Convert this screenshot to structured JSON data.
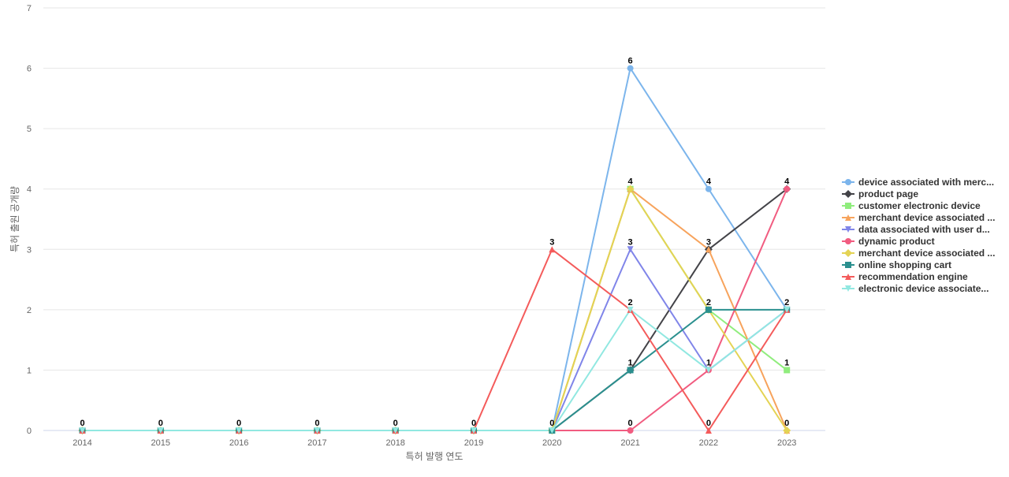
{
  "chart_data": {
    "type": "line",
    "title": "",
    "xlabel": "특허 발행 연도",
    "ylabel": "특허 출원 공개량",
    "x": [
      "2014",
      "2015",
      "2016",
      "2017",
      "2018",
      "2019",
      "2020",
      "2021",
      "2022",
      "2023"
    ],
    "ylim": [
      0,
      7
    ],
    "yticks": [
      0,
      1,
      2,
      3,
      4,
      5,
      6,
      7
    ],
    "grid": true,
    "legend_position": "right",
    "series": [
      {
        "name": "device associated with merc...",
        "color": "#7cb5ec",
        "marker": "circle",
        "values": [
          0,
          0,
          0,
          0,
          0,
          0,
          0,
          6,
          4,
          2
        ]
      },
      {
        "name": "product page",
        "color": "#434348",
        "marker": "diamond",
        "values": [
          0,
          0,
          0,
          0,
          0,
          0,
          0,
          1,
          3,
          4
        ]
      },
      {
        "name": "customer electronic device",
        "color": "#90ed7d",
        "marker": "square",
        "values": [
          0,
          0,
          0,
          0,
          0,
          0,
          0,
          4,
          2,
          1
        ]
      },
      {
        "name": "merchant device associated ...",
        "color": "#f7a35c",
        "marker": "triangle",
        "values": [
          0,
          0,
          0,
          0,
          0,
          0,
          0,
          4,
          3,
          0
        ]
      },
      {
        "name": "data associated with user d...",
        "color": "#8085e9",
        "marker": "triangle-down",
        "values": [
          0,
          0,
          0,
          0,
          0,
          0,
          0,
          3,
          1,
          2
        ]
      },
      {
        "name": "dynamic product",
        "color": "#f15c80",
        "marker": "circle",
        "values": [
          0,
          0,
          0,
          0,
          0,
          0,
          0,
          0,
          1,
          4
        ]
      },
      {
        "name": "merchant device associated ...",
        "color": "#e4d354",
        "marker": "diamond",
        "values": [
          0,
          0,
          0,
          0,
          0,
          0,
          0,
          4,
          2,
          0
        ]
      },
      {
        "name": "online shopping cart",
        "color": "#2b908f",
        "marker": "square",
        "values": [
          0,
          0,
          0,
          0,
          0,
          0,
          0,
          1,
          2,
          2
        ]
      },
      {
        "name": "recommendation engine",
        "color": "#f45b5b",
        "marker": "triangle",
        "values": [
          0,
          0,
          0,
          0,
          0,
          0,
          3,
          2,
          0,
          2
        ]
      },
      {
        "name": "electronic device associate...",
        "color": "#91e8e1",
        "marker": "triangle-down",
        "values": [
          0,
          0,
          0,
          0,
          0,
          0,
          0,
          2,
          1,
          2
        ]
      }
    ],
    "data_labels": [
      {
        "x": "2014",
        "text": "0",
        "y": 0
      },
      {
        "x": "2015",
        "text": "0",
        "y": 0
      },
      {
        "x": "2016",
        "text": "0",
        "y": 0
      },
      {
        "x": "2017",
        "text": "0",
        "y": 0
      },
      {
        "x": "2018",
        "text": "0",
        "y": 0
      },
      {
        "x": "2019",
        "text": "0",
        "y": 0
      },
      {
        "x": "2020",
        "text": "3",
        "y": 3
      },
      {
        "x": "2020",
        "text": "0",
        "y": 0
      },
      {
        "x": "2021",
        "text": "6",
        "y": 6
      },
      {
        "x": "2021",
        "text": "4",
        "y": 4
      },
      {
        "x": "2021",
        "text": "3",
        "y": 3
      },
      {
        "x": "2021",
        "text": "2",
        "y": 2
      },
      {
        "x": "2021",
        "text": "1",
        "y": 1
      },
      {
        "x": "2021",
        "text": "0",
        "y": 0
      },
      {
        "x": "2022",
        "text": "4",
        "y": 4
      },
      {
        "x": "2022",
        "text": "3",
        "y": 3
      },
      {
        "x": "2022",
        "text": "2",
        "y": 2
      },
      {
        "x": "2022",
        "text": "1",
        "y": 1
      },
      {
        "x": "2022",
        "text": "0",
        "y": 0
      },
      {
        "x": "2023",
        "text": "4",
        "y": 4
      },
      {
        "x": "2023",
        "text": "2",
        "y": 2
      },
      {
        "x": "2023",
        "text": "1",
        "y": 1
      },
      {
        "x": "2023",
        "text": "0",
        "y": 0
      }
    ]
  }
}
